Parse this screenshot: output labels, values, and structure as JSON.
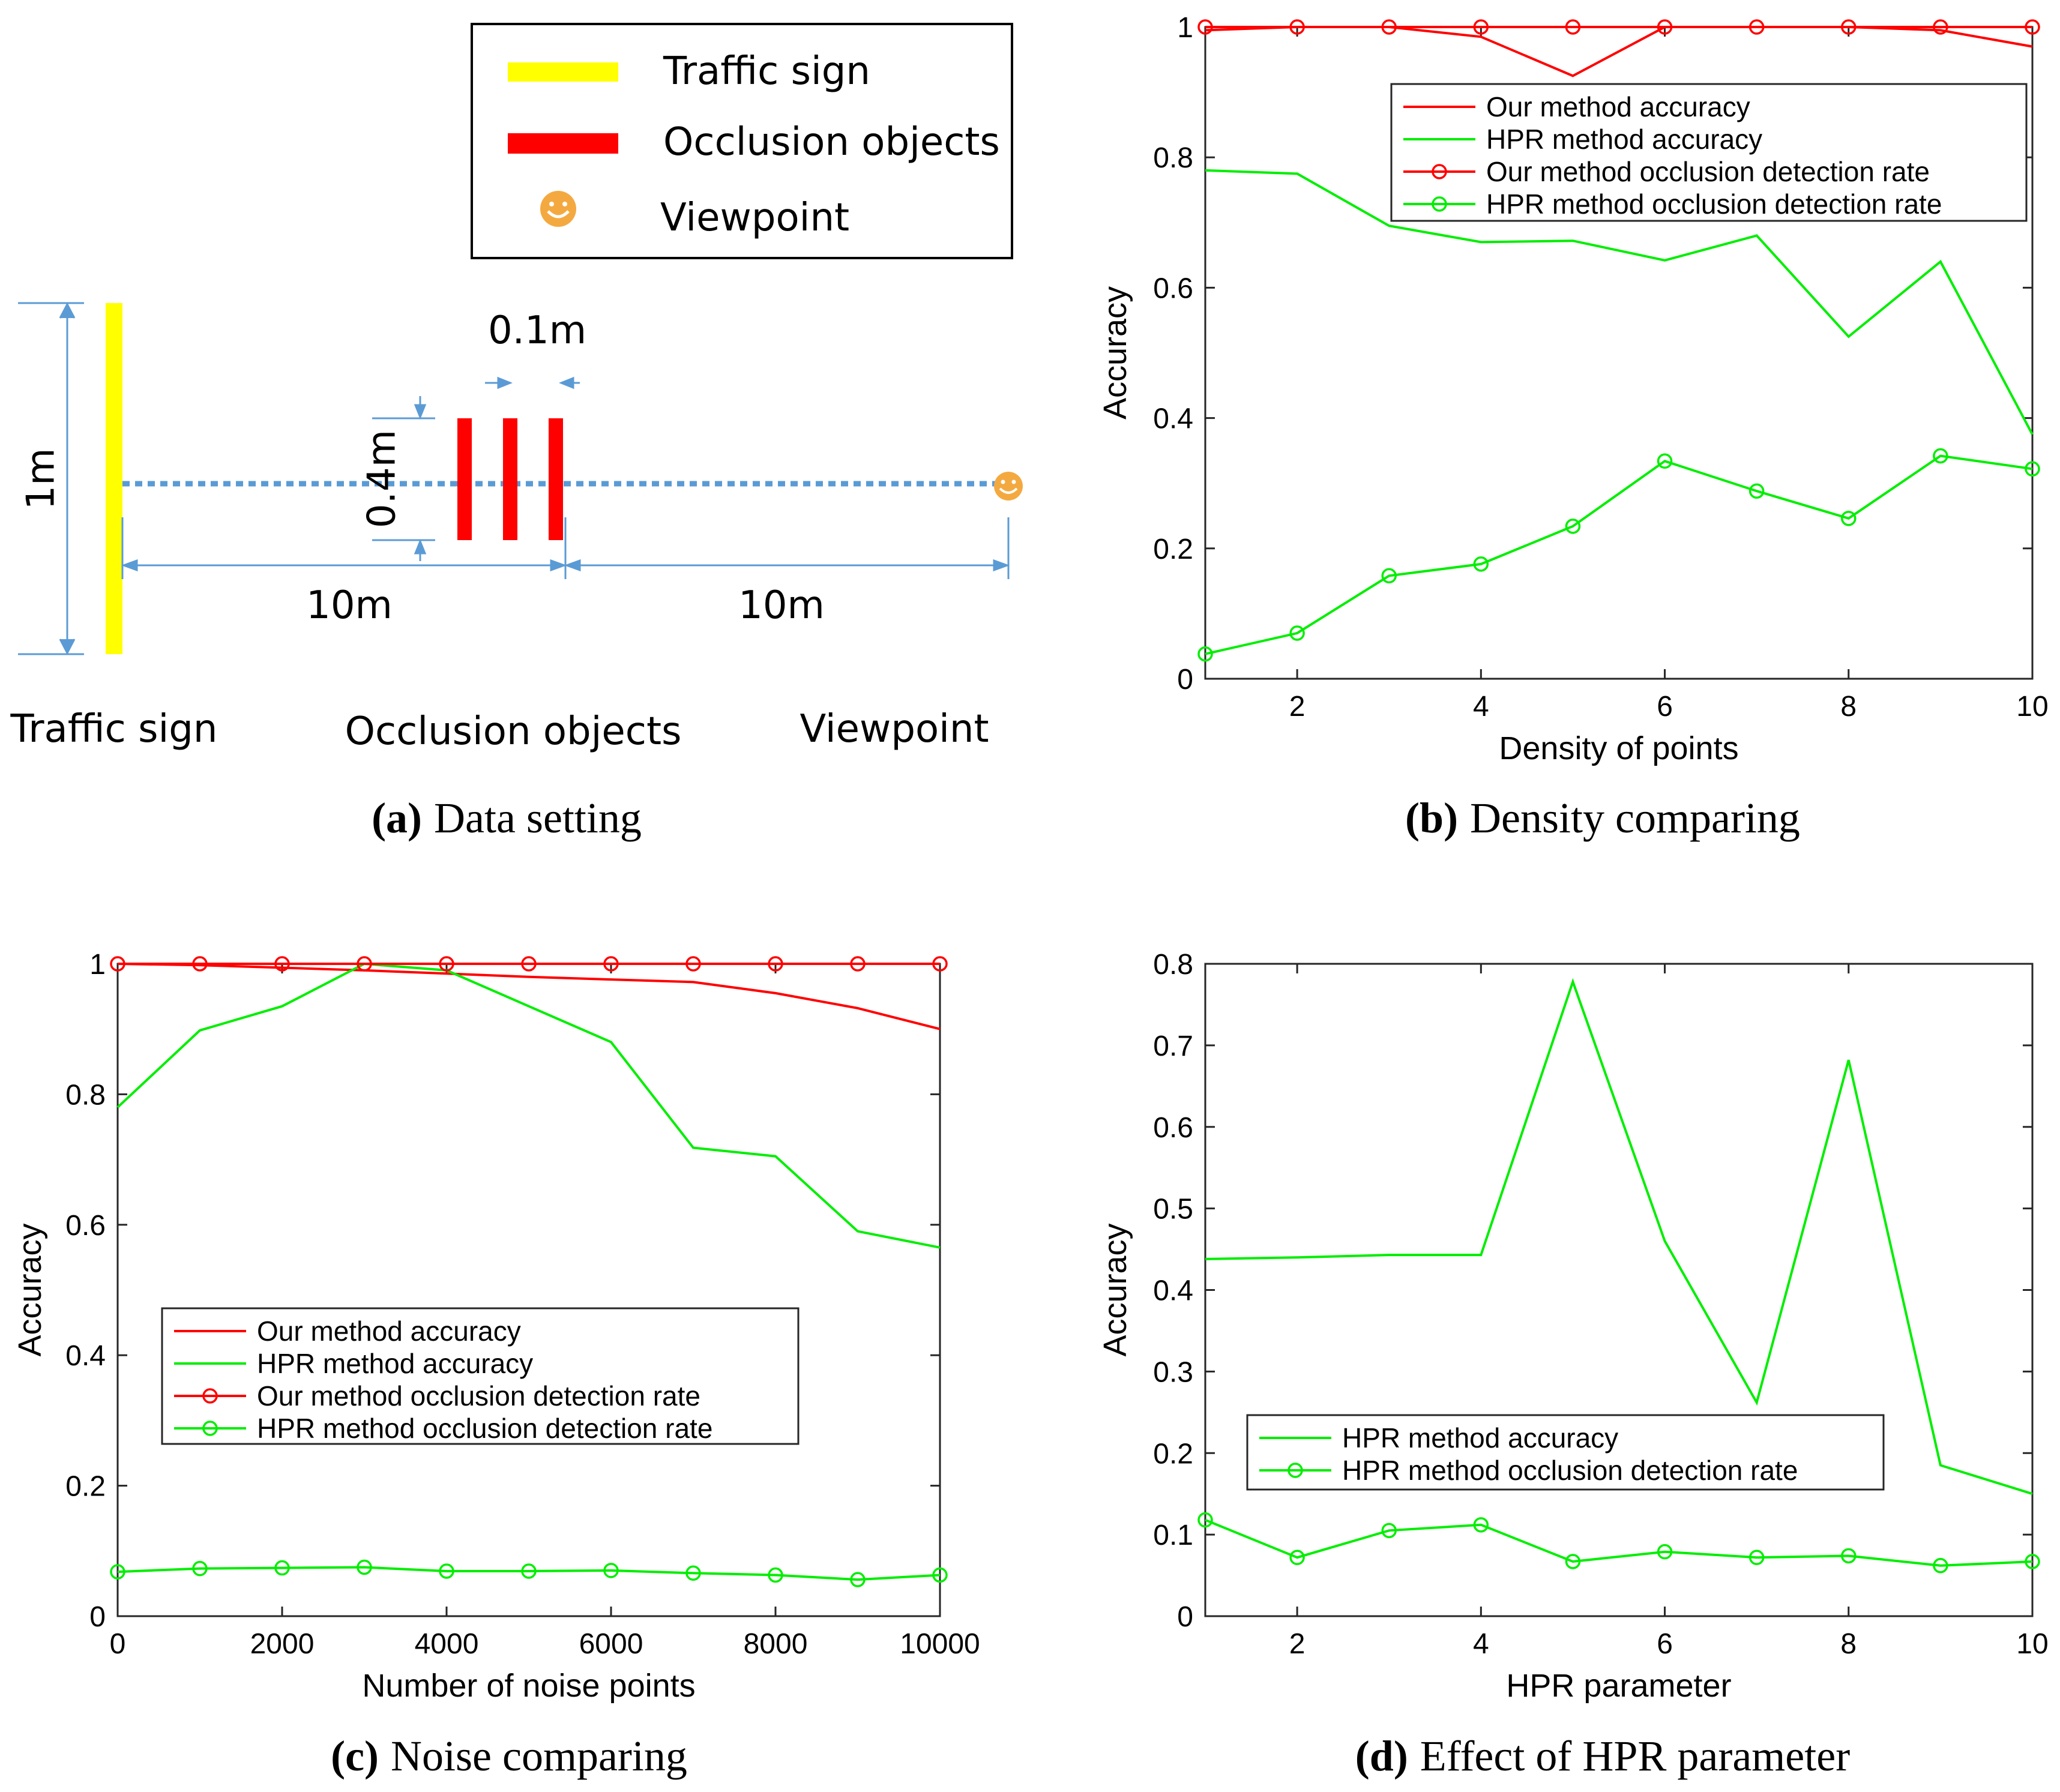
{
  "colors": {
    "red": "#ff0000",
    "green": "#00ee00",
    "yellow": "#ffff00",
    "blue": "#5b9bd5",
    "emoji": "#f4a940"
  },
  "panel_a": {
    "caption_letter": "(a)",
    "caption_text": "Data setting",
    "legend": [
      {
        "label": "Traffic sign",
        "symbol": "yellow-bar"
      },
      {
        "label": "Occlusion objects",
        "symbol": "red-bar"
      },
      {
        "label": "Viewpoint",
        "symbol": "smiley"
      }
    ],
    "dim_height": "1m",
    "dim_width": "0.1m",
    "dim_occlusion": "0.4m",
    "dim_left": "10m",
    "dim_right": "10m",
    "label_sign": "Traffic sign",
    "label_occlusion": "Occlusion objects",
    "label_viewpoint": "Viewpoint"
  },
  "chart_data": [
    {
      "id": "b",
      "caption_letter": "(b)",
      "caption_text": "Density comparing",
      "type": "line",
      "xlabel": "Density of points",
      "ylabel": "Accuracy",
      "xlim": [
        1,
        10
      ],
      "ylim": [
        0,
        1
      ],
      "xticks": [
        2,
        4,
        6,
        8,
        10
      ],
      "yticks": [
        0,
        0.2,
        0.4,
        0.6,
        0.8,
        1
      ],
      "x": [
        1,
        2,
        3,
        4,
        5,
        6,
        7,
        8,
        9,
        10
      ],
      "legend_position": "top-right",
      "series": [
        {
          "name": "Our method accuracy",
          "color": "red",
          "marker": "none",
          "values": [
            0.995,
            1.0,
            1.0,
            0.985,
            0.925,
            1.0,
            1.0,
            1.0,
            0.995,
            0.97
          ]
        },
        {
          "name": "HPR method accuracy",
          "color": "green",
          "marker": "none",
          "values": [
            0.78,
            0.775,
            0.695,
            0.67,
            0.672,
            0.642,
            0.68,
            0.525,
            0.64,
            0.375
          ]
        },
        {
          "name": "Our method occlusion detection rate",
          "color": "red",
          "marker": "circle",
          "values": [
            1,
            1,
            1,
            1,
            1,
            1,
            1,
            1,
            1,
            1
          ]
        },
        {
          "name": "HPR method occlusion detection rate",
          "color": "green",
          "marker": "circle",
          "values": [
            0.038,
            0.07,
            0.158,
            0.176,
            0.234,
            0.334,
            0.288,
            0.246,
            0.342,
            0.322
          ]
        }
      ]
    },
    {
      "id": "c",
      "caption_letter": "(c)",
      "caption_text": "Noise comparing",
      "type": "line",
      "xlabel": "Number of noise points",
      "ylabel": "Accuracy",
      "xlim": [
        0,
        10000
      ],
      "ylim": [
        0,
        1
      ],
      "xticks": [
        0,
        2000,
        4000,
        6000,
        8000,
        10000
      ],
      "yticks": [
        0,
        0.2,
        0.4,
        0.6,
        0.8,
        1
      ],
      "x": [
        0,
        1000,
        2000,
        3000,
        4000,
        5000,
        6000,
        7000,
        8000,
        9000,
        10000
      ],
      "legend_position": "lower-left",
      "series": [
        {
          "name": "Our method accuracy",
          "color": "red",
          "marker": "none",
          "values": [
            1.0,
            0.998,
            0.994,
            0.99,
            0.985,
            0.98,
            0.976,
            0.972,
            0.955,
            0.932,
            0.9
          ]
        },
        {
          "name": "HPR method accuracy",
          "color": "green",
          "marker": "none",
          "values": [
            0.78,
            0.898,
            0.935,
            1.0,
            0.99,
            0.935,
            0.88,
            0.718,
            0.705,
            0.59,
            0.565
          ]
        },
        {
          "name": "Our method occlusion detection rate",
          "color": "red",
          "marker": "circle",
          "values": [
            1,
            1,
            1,
            1,
            1,
            1,
            1,
            1,
            1,
            1,
            1
          ]
        },
        {
          "name": "HPR method occlusion detection rate",
          "color": "green",
          "marker": "circle",
          "values": [
            0.068,
            0.073,
            0.074,
            0.075,
            0.069,
            0.069,
            0.07,
            0.066,
            0.063,
            0.056,
            0.063
          ]
        }
      ]
    },
    {
      "id": "d",
      "caption_letter": "(d)",
      "caption_text": "Effect of HPR parameter",
      "type": "line",
      "xlabel": "HPR parameter",
      "ylabel": "Accuracy",
      "xlim": [
        1,
        10
      ],
      "ylim": [
        0,
        0.8
      ],
      "xticks": [
        2,
        4,
        6,
        8,
        10
      ],
      "yticks": [
        0,
        0.1,
        0.2,
        0.3,
        0.4,
        0.5,
        0.6,
        0.7,
        0.8
      ],
      "x": [
        1,
        2,
        3,
        4,
        5,
        6,
        7,
        8,
        9,
        10
      ],
      "legend_position": "lower-left",
      "series": [
        {
          "name": "HPR method accuracy",
          "color": "green",
          "marker": "none",
          "values": [
            0.438,
            0.44,
            0.443,
            0.443,
            0.778,
            0.46,
            0.262,
            0.682,
            0.185,
            0.15
          ]
        },
        {
          "name": "HPR method occlusion detection rate",
          "color": "green",
          "marker": "circle",
          "values": [
            0.118,
            0.072,
            0.105,
            0.112,
            0.067,
            0.079,
            0.072,
            0.074,
            0.062,
            0.067
          ]
        }
      ]
    }
  ]
}
